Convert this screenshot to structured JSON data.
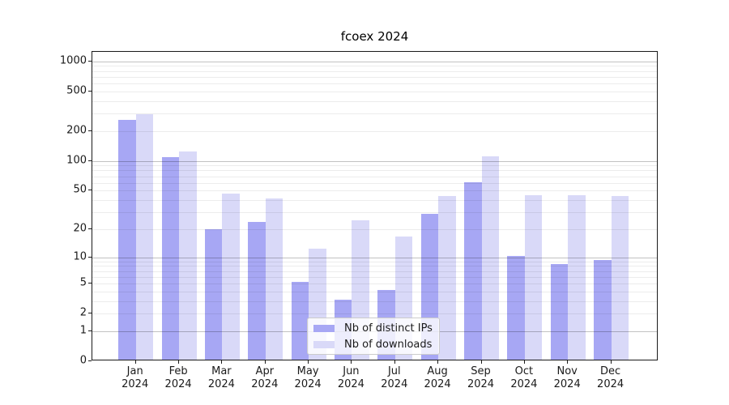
{
  "title": "fcoex 2024",
  "legend": {
    "position": "lower center",
    "items": [
      {
        "label": "Nb of distinct IPs"
      },
      {
        "label": "Nb of downloads"
      }
    ]
  },
  "colors": {
    "distinct_ips_bar": "#a7a7f4",
    "downloads_bar": "#d9d9f8",
    "grid_major": "#c2c2c2",
    "grid_minor": "#ebebeb",
    "axis": "#1a1a1a"
  },
  "chart_data": {
    "type": "bar",
    "title": "fcoex 2024",
    "xlabel": "",
    "ylabel": "",
    "yscale": "log1p",
    "ylim": [
      0,
      1228
    ],
    "yticks": [
      0,
      1,
      2,
      5,
      10,
      20,
      50,
      100,
      200,
      500,
      1000
    ],
    "grid": "both",
    "legend_position": "lower center",
    "categories": [
      "Jan 2024",
      "Feb 2024",
      "Mar 2024",
      "Apr 2024",
      "May 2024",
      "Jun 2024",
      "Jul 2024",
      "Aug 2024",
      "Sep 2024",
      "Oct 2024",
      "Nov 2024",
      "Dec 2024"
    ],
    "series": [
      {
        "name": "Nb of distinct IPs",
        "color": "#a7a7f4",
        "values": [
          250,
          105,
          19,
          23,
          5,
          3,
          4,
          28,
          58,
          10,
          8,
          9
        ]
      },
      {
        "name": "Nb of downloads",
        "color": "#d9d9f8",
        "values": [
          284,
          120,
          45,
          40,
          12,
          24,
          16,
          42,
          107,
          43,
          43,
          42
        ]
      }
    ]
  }
}
